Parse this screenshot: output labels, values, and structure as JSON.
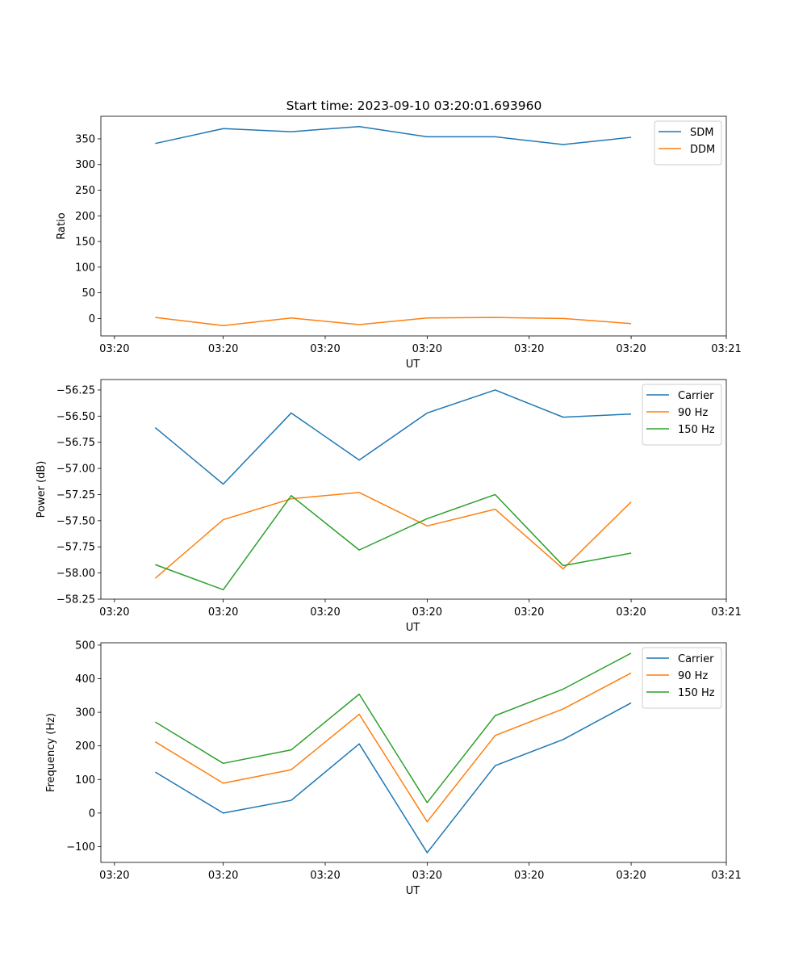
{
  "figure_title": "Start time: 2023-09-10 03:20:01.693960",
  "colors": {
    "blue": "#1f77b4",
    "orange": "#ff7f0e",
    "green": "#2ca02c"
  },
  "chart_data": [
    {
      "type": "line",
      "id": "ratio",
      "title": "Start time: 2023-09-10 03:20:01.693960",
      "xlabel": "UT",
      "ylabel": "Ratio",
      "x": [
        1,
        2,
        3,
        4,
        5,
        6,
        7,
        8
      ],
      "xlim": [
        0.2,
        9.4
      ],
      "xticks": [
        0.4,
        2,
        3.5,
        5,
        6.5,
        8,
        9.4
      ],
      "xtick_labels": [
        "03:20",
        "03:20",
        "03:20",
        "03:20",
        "03:20",
        "03:20",
        "03:21"
      ],
      "ylim": [
        -34,
        394
      ],
      "yticks": [
        0,
        50,
        100,
        150,
        200,
        250,
        300,
        350
      ],
      "ytick_labels": [
        "0",
        "50",
        "100",
        "150",
        "200",
        "250",
        "300",
        "350"
      ],
      "legend_position": "top-right",
      "series": [
        {
          "name": "SDM",
          "color": "#1f77b4",
          "values": [
            341,
            370,
            364,
            374,
            354,
            354,
            339,
            353
          ]
        },
        {
          "name": "DDM",
          "color": "#ff7f0e",
          "values": [
            2,
            -14,
            1,
            -12,
            1,
            2,
            0,
            -10
          ]
        }
      ]
    },
    {
      "type": "line",
      "id": "power",
      "title": "",
      "xlabel": "UT",
      "ylabel": "Power (dB)",
      "x": [
        1,
        2,
        3,
        4,
        5,
        6,
        7,
        8
      ],
      "xlim": [
        0.2,
        9.4
      ],
      "xticks": [
        0.4,
        2,
        3.5,
        5,
        6.5,
        8,
        9.4
      ],
      "xtick_labels": [
        "03:20",
        "03:20",
        "03:20",
        "03:20",
        "03:20",
        "03:20",
        "03:21"
      ],
      "ylim": [
        -58.25,
        -56.15
      ],
      "yticks": [
        -58.25,
        -58.0,
        -57.75,
        -57.5,
        -57.25,
        -57.0,
        -56.75,
        -56.5,
        -56.25
      ],
      "ytick_labels": [
        "−58.25",
        "−58.00",
        "−57.75",
        "−57.50",
        "−57.25",
        "−57.00",
        "−56.75",
        "−56.50",
        "−56.25"
      ],
      "legend_position": "top-right",
      "series": [
        {
          "name": "Carrier",
          "color": "#1f77b4",
          "values": [
            -56.61,
            -57.15,
            -56.47,
            -56.92,
            -56.47,
            -56.25,
            -56.51,
            -56.48
          ]
        },
        {
          "name": "90 Hz",
          "color": "#ff7f0e",
          "values": [
            -58.05,
            -57.49,
            -57.29,
            -57.23,
            -57.55,
            -57.39,
            -57.96,
            -57.32
          ]
        },
        {
          "name": "150 Hz",
          "color": "#2ca02c",
          "values": [
            -57.92,
            -58.16,
            -57.26,
            -57.78,
            -57.48,
            -57.25,
            -57.93,
            -57.81
          ]
        }
      ]
    },
    {
      "type": "line",
      "id": "frequency",
      "title": "",
      "xlabel": "UT",
      "ylabel": "Frequency (Hz)",
      "x": [
        1,
        2,
        3,
        4,
        5,
        6,
        7,
        8
      ],
      "xlim": [
        0.2,
        9.4
      ],
      "xticks": [
        0.4,
        2,
        3.5,
        5,
        6.5,
        8,
        9.4
      ],
      "xtick_labels": [
        "03:20",
        "03:20",
        "03:20",
        "03:20",
        "03:20",
        "03:20",
        "03:21"
      ],
      "ylim": [
        -147,
        507
      ],
      "yticks": [
        -100,
        0,
        100,
        200,
        300,
        400,
        500
      ],
      "ytick_labels": [
        "−100",
        "0",
        "100",
        "200",
        "300",
        "400",
        "500"
      ],
      "legend_position": "top-right",
      "series": [
        {
          "name": "Carrier",
          "color": "#1f77b4",
          "values": [
            122,
            0,
            38,
            206,
            -118,
            141,
            219,
            328
          ]
        },
        {
          "name": "90 Hz",
          "color": "#ff7f0e",
          "values": [
            212,
            89,
            129,
            294,
            -26,
            231,
            310,
            417
          ]
        },
        {
          "name": "150 Hz",
          "color": "#2ca02c",
          "values": [
            271,
            148,
            188,
            354,
            31,
            290,
            369,
            476
          ]
        }
      ]
    }
  ]
}
